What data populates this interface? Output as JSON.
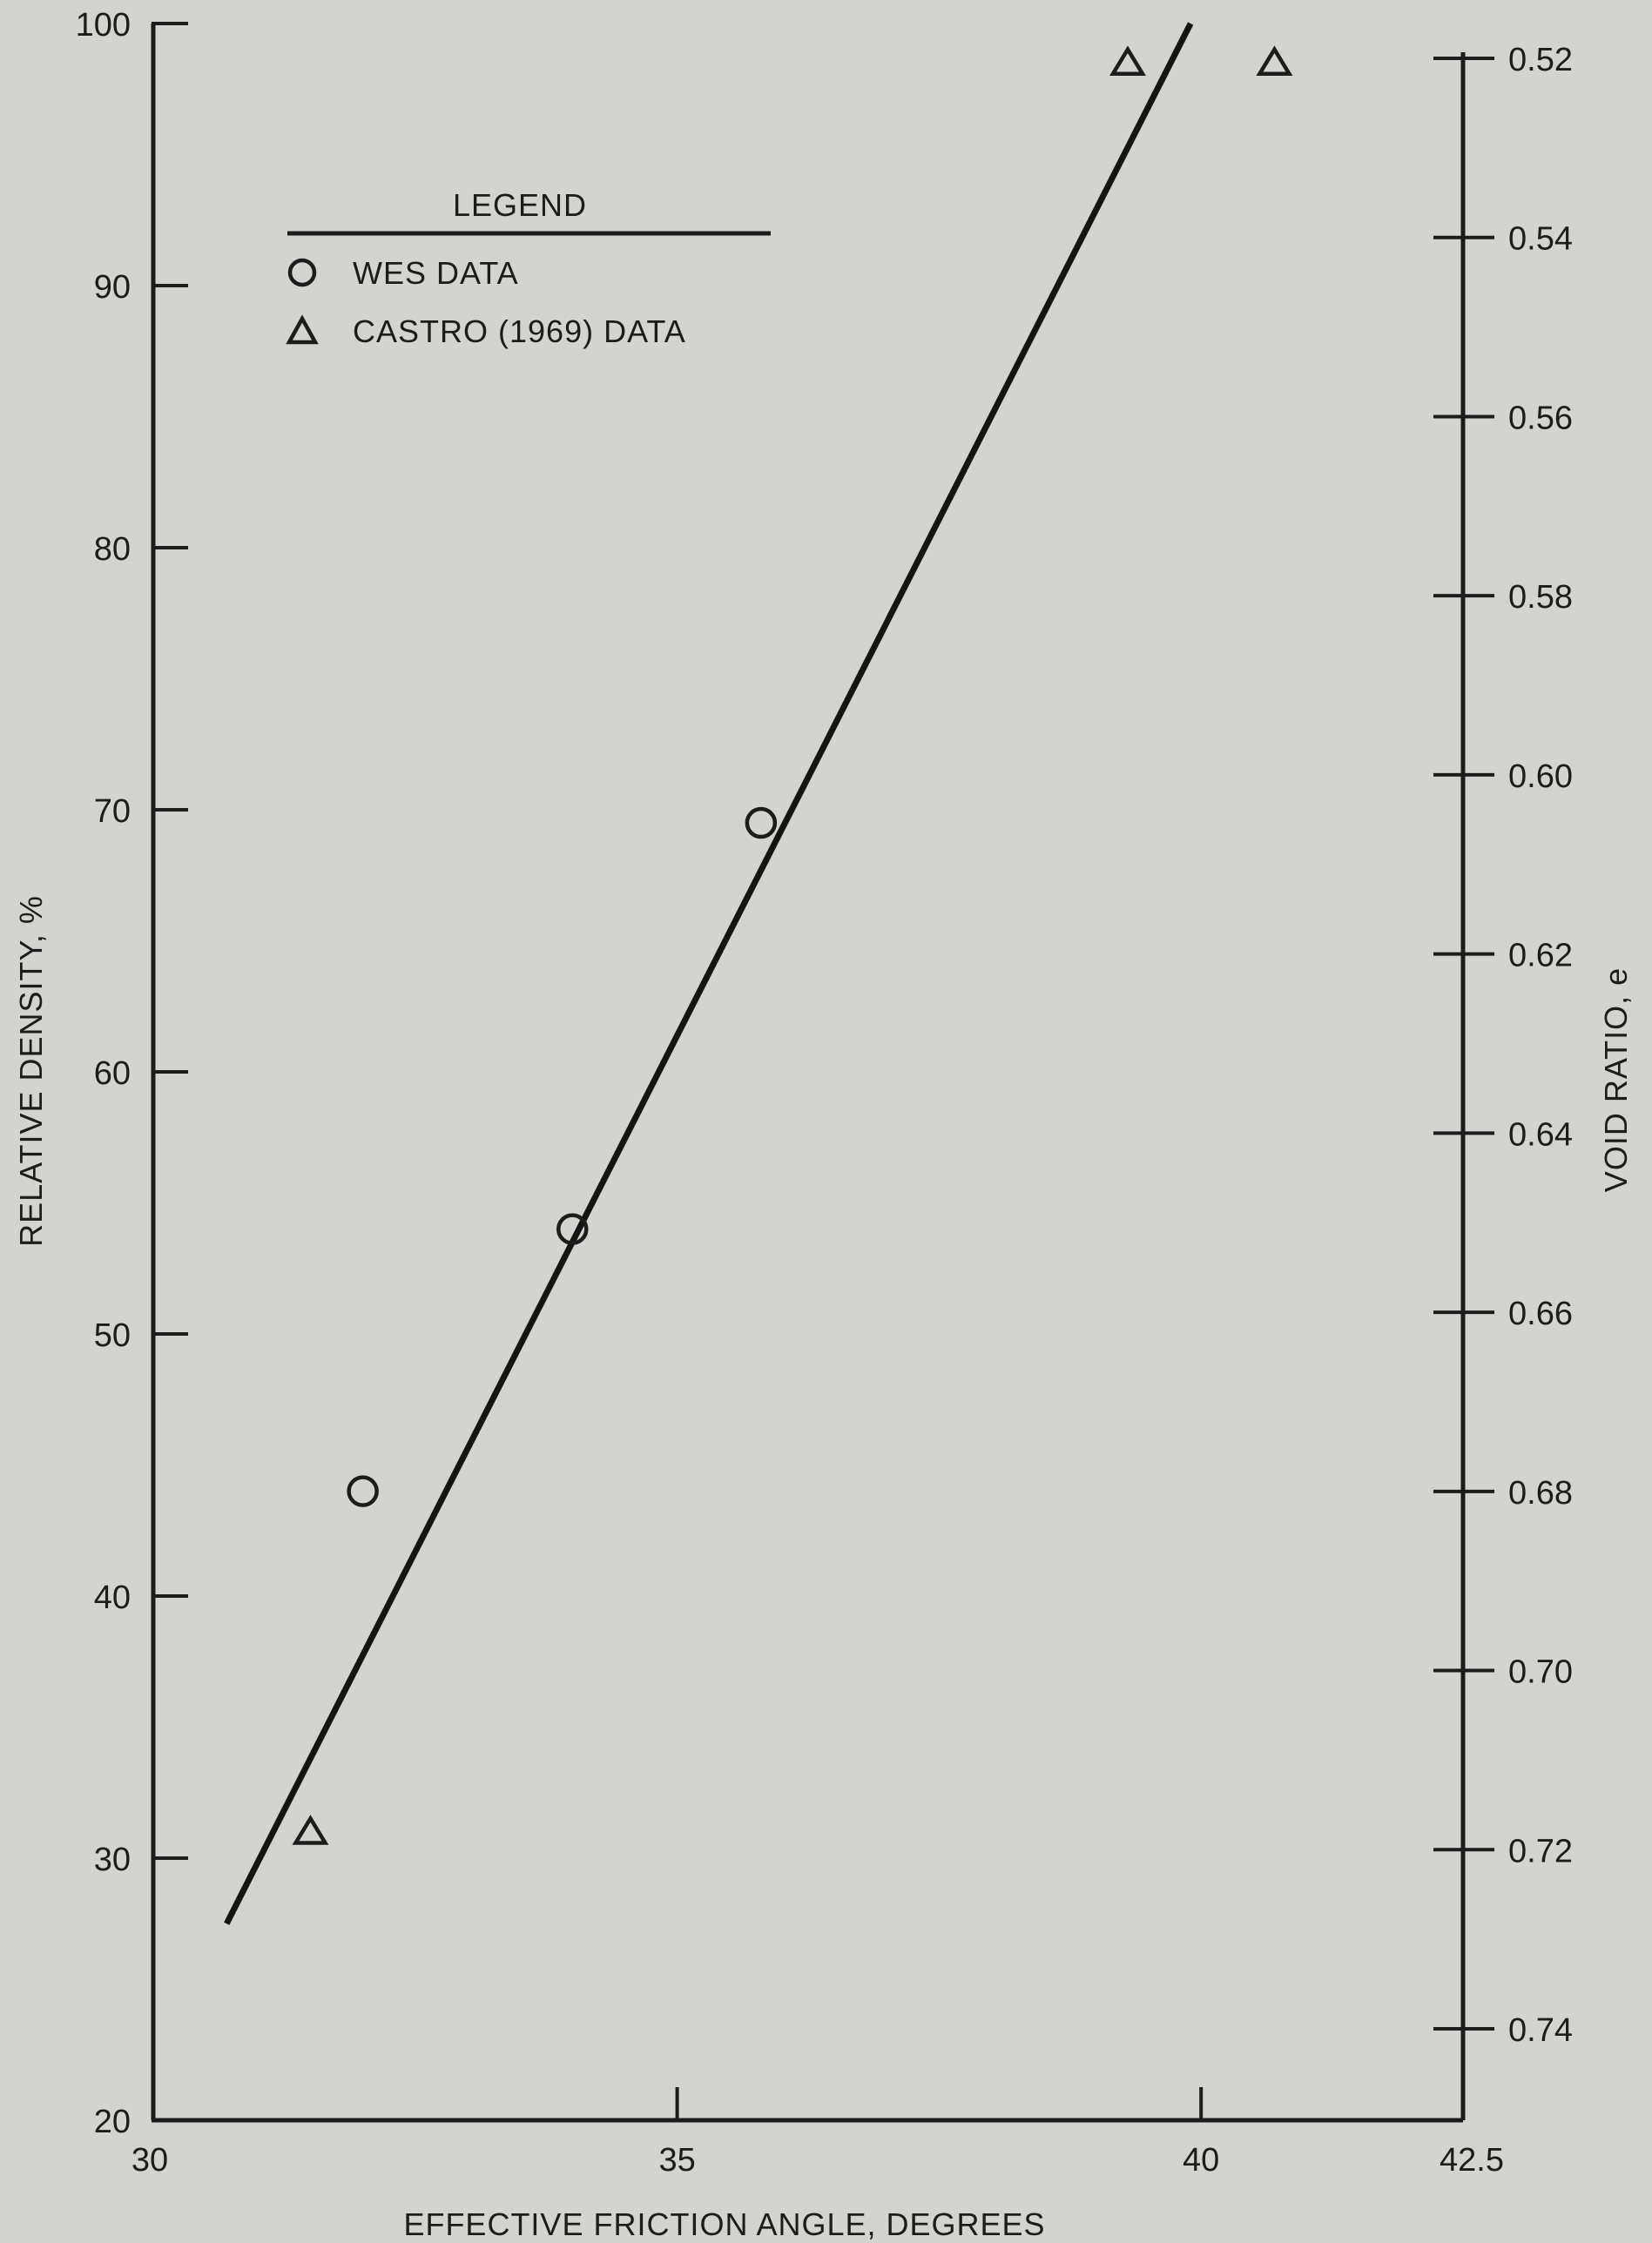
{
  "chart_data": {
    "type": "scatter",
    "title": "",
    "xlabel": "EFFECTIVE FRICTION ANGLE, DEGREES",
    "ylabel": "RELATIVE DENSITY, %",
    "y2label": "VOID RATIO, e",
    "xlim": [
      30,
      42.5
    ],
    "ylim": [
      20,
      100
    ],
    "y2lim": [
      0.51,
      0.75
    ],
    "x_ticks": [
      30,
      35,
      40,
      42.5
    ],
    "x_tick_labels": [
      "30",
      "35",
      "40",
      "42.5"
    ],
    "y_ticks": [
      20,
      30,
      40,
      50,
      60,
      70,
      80,
      90,
      100
    ],
    "y_tick_labels": [
      "20",
      "30",
      "40",
      "50",
      "60",
      "70",
      "80",
      "90",
      "100"
    ],
    "y2_ticks": [
      0.52,
      0.54,
      0.56,
      0.58,
      0.6,
      0.62,
      0.64,
      0.66,
      0.68,
      0.7,
      0.72,
      0.74
    ],
    "y2_tick_labels": [
      "0.52",
      "0.54",
      "0.56",
      "0.58",
      "0.60",
      "0.62",
      "0.64",
      "0.66",
      "0.68",
      "0.70",
      "0.72",
      "0.74"
    ],
    "grid": false,
    "legend": {
      "title": "LEGEND",
      "position": "top-left",
      "entries": [
        {
          "label": "WES DATA",
          "marker": "circle"
        },
        {
          "label": "CASTRO (1969) DATA",
          "marker": "triangle"
        }
      ]
    },
    "series": [
      {
        "name": "WES DATA",
        "marker": "circle",
        "points": [
          {
            "x": 32.0,
            "y": 44.0
          },
          {
            "x": 34.0,
            "y": 54.0
          },
          {
            "x": 35.8,
            "y": 69.5
          }
        ]
      },
      {
        "name": "CASTRO (1969) DATA",
        "marker": "triangle",
        "points": [
          {
            "x": 31.5,
            "y": 31.0
          },
          {
            "x": 39.3,
            "y": 98.5
          },
          {
            "x": 40.7,
            "y": 98.5
          }
        ]
      }
    ],
    "fit_line": {
      "x": [
        30.7,
        39.9
      ],
      "y": [
        27.5,
        100
      ]
    }
  }
}
